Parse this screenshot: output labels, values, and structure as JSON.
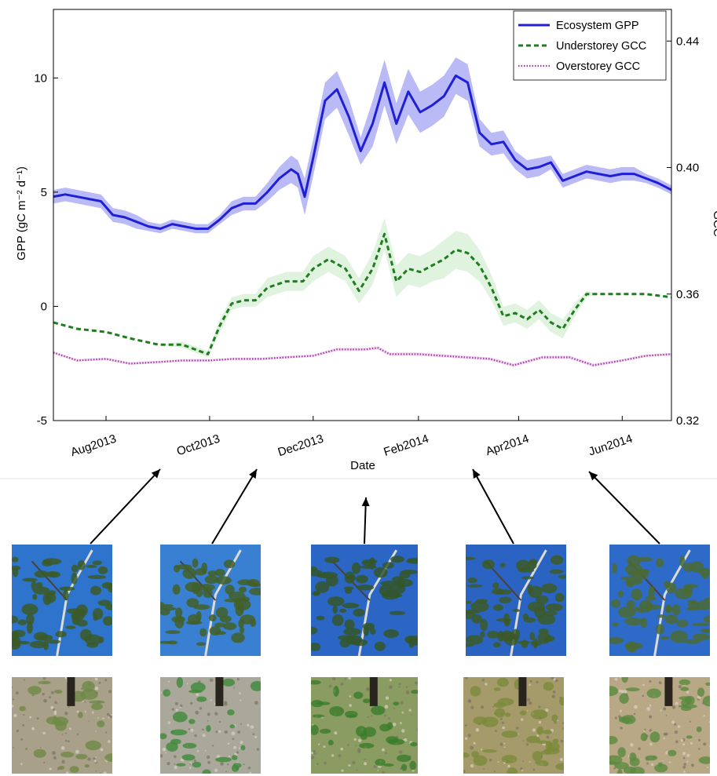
{
  "chart_data": {
    "type": "line",
    "xlabel": "Date",
    "ylabel": "GPP (gC m⁻² d⁻¹)",
    "ylabel_right": "GCC",
    "x_ticks": [
      "Aug2013",
      "Oct2013",
      "Dec2013",
      "Feb2014",
      "Apr2014",
      "Jun2014"
    ],
    "x_tick_dates": [
      "2013-08-01",
      "2013-10-01",
      "2013-12-01",
      "2014-02-01",
      "2014-04-01",
      "2014-06-01"
    ],
    "xlim": [
      "2013-07-01",
      "2014-06-30"
    ],
    "ylim_left": [
      -5,
      13
    ],
    "y_ticks_left": [
      "-5",
      "0",
      "5",
      "10"
    ],
    "ylim_right": [
      0.32,
      0.45
    ],
    "y_ticks_right": [
      "0.32",
      "0.36",
      "0.40",
      "0.44"
    ],
    "legend_position": "top-right",
    "series": [
      {
        "name": "Ecosystem GPP",
        "axis": "left",
        "style": "solid",
        "color": "#1f1fd6",
        "band_color": "#8c8cf2",
        "x": [
          "2013-07-01",
          "2013-07-08",
          "2013-07-15",
          "2013-07-22",
          "2013-07-29",
          "2013-08-05",
          "2013-08-12",
          "2013-08-19",
          "2013-08-26",
          "2013-09-02",
          "2013-09-09",
          "2013-09-16",
          "2013-09-23",
          "2013-09-30",
          "2013-10-07",
          "2013-10-14",
          "2013-10-21",
          "2013-10-28",
          "2013-11-04",
          "2013-11-11",
          "2013-11-18",
          "2013-11-22",
          "2013-11-26",
          "2013-12-01",
          "2013-12-08",
          "2013-12-15",
          "2013-12-22",
          "2013-12-29",
          "2014-01-05",
          "2014-01-12",
          "2014-01-19",
          "2014-01-26",
          "2014-02-02",
          "2014-02-09",
          "2014-02-16",
          "2014-02-23",
          "2014-03-02",
          "2014-03-09",
          "2014-03-16",
          "2014-03-23",
          "2014-03-30",
          "2014-04-06",
          "2014-04-13",
          "2014-04-20",
          "2014-04-27",
          "2014-05-04",
          "2014-05-11",
          "2014-05-18",
          "2014-05-25",
          "2014-06-01",
          "2014-06-08",
          "2014-06-15",
          "2014-06-22",
          "2014-06-30"
        ],
        "values": [
          4.8,
          4.9,
          4.8,
          4.7,
          4.6,
          4.0,
          3.9,
          3.7,
          3.5,
          3.4,
          3.6,
          3.5,
          3.4,
          3.4,
          3.8,
          4.3,
          4.5,
          4.5,
          5.0,
          5.6,
          6.0,
          5.8,
          4.8,
          6.5,
          9.0,
          9.5,
          8.3,
          6.8,
          8.0,
          9.8,
          8.0,
          9.4,
          8.5,
          8.8,
          9.2,
          10.1,
          9.8,
          7.6,
          7.1,
          7.2,
          6.4,
          6.0,
          6.1,
          6.3,
          5.5,
          5.7,
          5.9,
          5.8,
          5.7,
          5.8,
          5.8,
          5.6,
          5.4,
          5.1
        ],
        "spread": [
          0.3,
          0.3,
          0.3,
          0.3,
          0.3,
          0.3,
          0.3,
          0.3,
          0.2,
          0.2,
          0.2,
          0.2,
          0.2,
          0.2,
          0.2,
          0.3,
          0.3,
          0.3,
          0.4,
          0.5,
          0.6,
          0.6,
          0.8,
          0.8,
          0.8,
          0.8,
          0.8,
          0.6,
          1.0,
          1.0,
          0.9,
          1.0,
          0.9,
          0.9,
          0.9,
          0.8,
          0.8,
          0.6,
          0.5,
          0.5,
          0.4,
          0.4,
          0.4,
          0.3,
          0.3,
          0.3,
          0.3,
          0.3,
          0.3,
          0.3,
          0.3,
          0.2,
          0.2,
          0.2
        ]
      },
      {
        "name": "Understorey GCC",
        "axis": "right",
        "style": "dashed",
        "color": "#1e7d1e",
        "band_color": "#c9ebc9",
        "x": [
          "2013-07-01",
          "2013-07-15",
          "2013-08-01",
          "2013-08-15",
          "2013-09-01",
          "2013-09-15",
          "2013-09-30",
          "2013-10-07",
          "2013-10-14",
          "2013-10-21",
          "2013-10-28",
          "2013-11-04",
          "2013-11-15",
          "2013-11-25",
          "2013-12-01",
          "2013-12-10",
          "2013-12-20",
          "2013-12-28",
          "2014-01-05",
          "2014-01-12",
          "2014-01-19",
          "2014-01-26",
          "2014-02-02",
          "2014-02-09",
          "2014-02-16",
          "2014-02-23",
          "2014-03-02",
          "2014-03-09",
          "2014-03-16",
          "2014-03-23",
          "2014-03-30",
          "2014-04-06",
          "2014-04-13",
          "2014-04-20",
          "2014-04-27",
          "2014-05-04",
          "2014-05-11",
          "2014-05-18",
          "2014-06-01",
          "2014-06-15",
          "2014-06-30"
        ],
        "values": [
          0.351,
          0.349,
          0.348,
          0.346,
          0.344,
          0.344,
          0.341,
          0.35,
          0.357,
          0.358,
          0.358,
          0.362,
          0.364,
          0.364,
          0.368,
          0.371,
          0.368,
          0.361,
          0.368,
          0.379,
          0.364,
          0.368,
          0.367,
          0.369,
          0.371,
          0.374,
          0.373,
          0.369,
          0.362,
          0.353,
          0.354,
          0.352,
          0.355,
          0.351,
          0.349,
          0.355,
          0.36,
          0.36,
          0.36,
          0.36,
          0.359
        ],
        "spread": [
          0.0,
          0.0,
          0.0,
          0.0,
          0.0,
          0.001,
          0.001,
          0.002,
          0.002,
          0.002,
          0.002,
          0.003,
          0.003,
          0.003,
          0.004,
          0.004,
          0.004,
          0.004,
          0.005,
          0.005,
          0.005,
          0.005,
          0.005,
          0.005,
          0.006,
          0.006,
          0.006,
          0.005,
          0.004,
          0.003,
          0.003,
          0.003,
          0.003,
          0.003,
          0.003,
          0.002,
          0.001,
          0.0,
          0.0,
          0.0,
          0.0
        ]
      },
      {
        "name": "Overstorey GCC",
        "axis": "right",
        "style": "dotted",
        "color": "#a03ca0",
        "band_color": "#e6bde6",
        "x": [
          "2013-07-01",
          "2013-07-15",
          "2013-08-01",
          "2013-08-15",
          "2013-09-01",
          "2013-09-15",
          "2013-10-01",
          "2013-10-15",
          "2013-11-01",
          "2013-11-15",
          "2013-12-01",
          "2013-12-15",
          "2014-01-01",
          "2014-01-08",
          "2014-01-15",
          "2014-02-01",
          "2014-02-15",
          "2014-03-01",
          "2014-03-15",
          "2014-03-29",
          "2014-04-15",
          "2014-05-01",
          "2014-05-15",
          "2014-06-01",
          "2014-06-15",
          "2014-06-30"
        ],
        "values": [
          0.3415,
          0.339,
          0.3395,
          0.338,
          0.3385,
          0.339,
          0.339,
          0.3395,
          0.3395,
          0.34,
          0.3405,
          0.3425,
          0.3425,
          0.343,
          0.341,
          0.341,
          0.3405,
          0.34,
          0.3395,
          0.3375,
          0.34,
          0.34,
          0.3375,
          0.339,
          0.3405,
          0.341
        ],
        "spread": [
          0.0004,
          0.0004,
          0.0004,
          0.0004,
          0.0004,
          0.0004,
          0.0004,
          0.0004,
          0.0004,
          0.0004,
          0.0004,
          0.0005,
          0.0005,
          0.0005,
          0.0005,
          0.0005,
          0.0005,
          0.0005,
          0.0005,
          0.0005,
          0.0005,
          0.0005,
          0.0005,
          0.0004,
          0.0004,
          0.0004
        ]
      }
    ]
  },
  "photo_rows": [
    {
      "row": "overstorey",
      "photos": [
        {
          "sky": "#2e74cc",
          "foliage": "#3b5a26"
        },
        {
          "sky": "#3a80d2",
          "foliage": "#435f28"
        },
        {
          "sky": "#2b66c4",
          "foliage": "#34562a"
        },
        {
          "sky": "#2a63c2",
          "foliage": "#3c5927"
        },
        {
          "sky": "#2e6bc8",
          "foliage": "#4a6a34"
        }
      ]
    },
    {
      "row": "understorey",
      "photos": [
        {
          "ground": "#a9a089",
          "plant": "#6e8a46"
        },
        {
          "ground": "#aaa89a",
          "plant": "#3f8a3a"
        },
        {
          "ground": "#8a9c62",
          "plant": "#3a7d2a"
        },
        {
          "ground": "#a59a6a",
          "plant": "#7a8a3a"
        },
        {
          "ground": "#b8a886",
          "plant": "#5a8a3e"
        }
      ]
    }
  ],
  "arrow_targets": [
    "Sep2013",
    "Nov2013",
    "Jan2014",
    "Mar2014",
    "May2014"
  ]
}
